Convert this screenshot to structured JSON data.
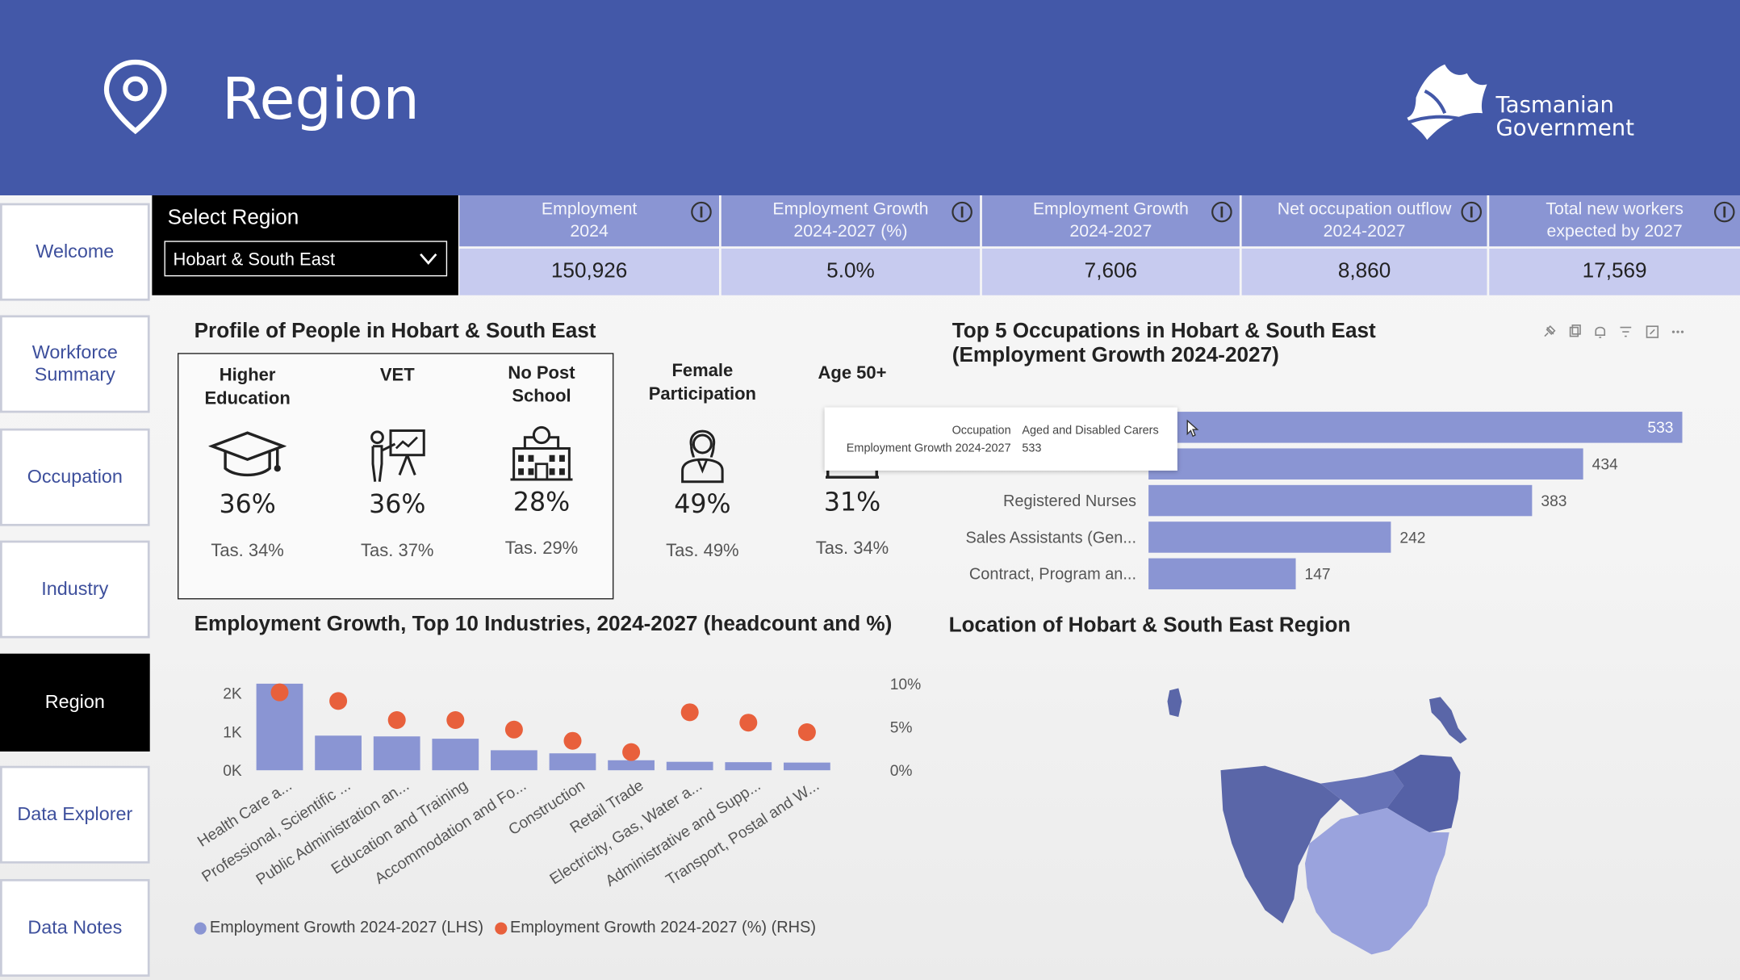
{
  "header": {
    "title": "Region",
    "logo_line1": "Tasmanian",
    "logo_line2": "Government"
  },
  "nav": [
    {
      "label": "Welcome",
      "active": false
    },
    {
      "label": "Workforce Summary",
      "active": false
    },
    {
      "label": "Occupation",
      "active": false
    },
    {
      "label": "Industry",
      "active": false
    },
    {
      "label": "Region",
      "active": true
    },
    {
      "label": "Data Explorer",
      "active": false
    },
    {
      "label": "Data Notes",
      "active": false
    }
  ],
  "selector": {
    "label": "Select Region",
    "value": "Hobart & South East"
  },
  "kpis": [
    {
      "line1": "Employment",
      "line2": "2024",
      "value": "150,926"
    },
    {
      "line1": "Employment Growth",
      "line2": "2024-2027 (%)",
      "value": "5.0%"
    },
    {
      "line1": "Employment Growth",
      "line2": "2024-2027",
      "value": "7,606"
    },
    {
      "line1": "Net occupation outflow",
      "line2": "2024-2027",
      "value": "8,860"
    },
    {
      "line1": "Total new workers",
      "line2": "expected by 2027",
      "value": "17,569"
    }
  ],
  "profile": {
    "title": "Profile of People in Hobart & South East",
    "items": [
      {
        "line1": "Higher",
        "line2": "Education",
        "pct": "36%",
        "tas": "Tas. 34%"
      },
      {
        "line1": "VET",
        "line2": "",
        "pct": "36%",
        "tas": "Tas. 37%"
      },
      {
        "line1": "No Post",
        "line2": "School",
        "pct": "28%",
        "tas": "Tas. 29%"
      },
      {
        "line1": "Female",
        "line2": "Participation",
        "pct": "49%",
        "tas": "Tas. 49%"
      },
      {
        "line1": "Age 50+",
        "line2": "",
        "pct": "31%",
        "tas": "Tas. 34%"
      }
    ]
  },
  "occupations": {
    "title_line1": "Top 5 Occupations in Hobart & South East",
    "title_line2": "(Employment Growth 2024-2027)",
    "tooltip": {
      "k1": "Occupation",
      "v1": "Aged and Disabled Carers",
      "k2": "Employment Growth 2024-2027",
      "v2": "533"
    }
  },
  "industries": {
    "title": "Employment Growth, Top 10 Industries, 2024-2027 (headcount and %)",
    "legend_lhs": "Employment Growth 2024-2027 (LHS)",
    "legend_rhs": "Employment Growth 2024-2027 (%) (RHS)"
  },
  "map": {
    "title": "Location of Hobart & South East Region"
  },
  "colors": {
    "header": "#4358a8",
    "bar": "#8a95d3",
    "dot": "#e8603c",
    "active_nav": "#000000"
  },
  "chart_data": [
    {
      "type": "bar",
      "orientation": "horizontal",
      "categories": [
        "Aged and Disabled Carers",
        "",
        "Registered Nurses",
        "Sales Assistants (Gen...",
        "Contract, Program an..."
      ],
      "values": [
        533,
        434,
        383,
        242,
        147
      ]
    },
    {
      "type": "bar",
      "categories": [
        "Health Care a...",
        "Professional, Scientific ...",
        "Public Administration an...",
        "Education and Training",
        "Accommodation and Fo...",
        "Construction",
        "Retail Trade",
        "Electricity, Gas, Water a...",
        "Administrative and Supp...",
        "Transport, Postal and W..."
      ],
      "series": [
        {
          "name": "Employment Growth 2024-2027 (LHS)",
          "type": "bar",
          "values": [
            2250,
            900,
            880,
            820,
            520,
            440,
            260,
            220,
            210,
            200
          ]
        },
        {
          "name": "Employment Growth 2024-2027 (%) (RHS)",
          "type": "scatter",
          "values": [
            9.0,
            8.0,
            5.8,
            5.8,
            4.7,
            3.4,
            2.1,
            6.7,
            5.5,
            4.4
          ]
        }
      ],
      "y_ticks": [
        "0K",
        "1K",
        "2K"
      ],
      "y2_ticks": [
        "0%",
        "5%",
        "10%"
      ],
      "ylim": [
        0,
        2250
      ],
      "y2lim": [
        0,
        10
      ]
    }
  ]
}
